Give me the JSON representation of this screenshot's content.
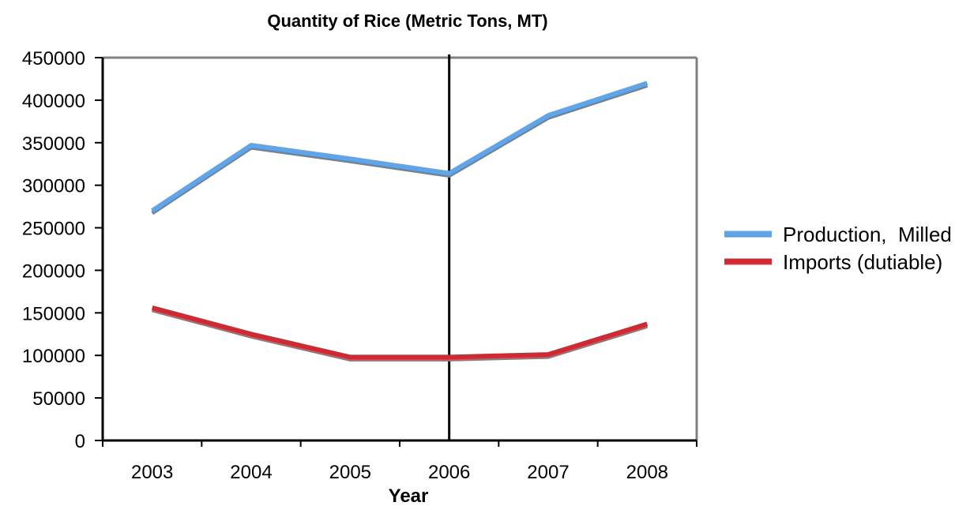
{
  "chart_data": {
    "type": "line",
    "title": "Quantity of Rice (Metric Tons, MT)",
    "xlabel": "Year",
    "ylabel": "",
    "categories": [
      "2003",
      "2004",
      "2005",
      "2006",
      "2007",
      "2008"
    ],
    "ylim": [
      0,
      450000
    ],
    "yticks": [
      "0",
      "50000",
      "100000",
      "150000",
      "200000",
      "250000",
      "300000",
      "350000",
      "400000",
      "450000"
    ],
    "grid": false,
    "legend_position": "right",
    "marker_line_at": "2006",
    "series": [
      {
        "name": "Production,  Milled",
        "color": "#5aa7f0",
        "values": [
          270000,
          347000,
          331000,
          314000,
          382000,
          420000
        ]
      },
      {
        "name": "Imports (dutiable)",
        "color": "#d9262e",
        "values": [
          156000,
          125000,
          98000,
          98000,
          101000,
          137000
        ]
      }
    ]
  }
}
